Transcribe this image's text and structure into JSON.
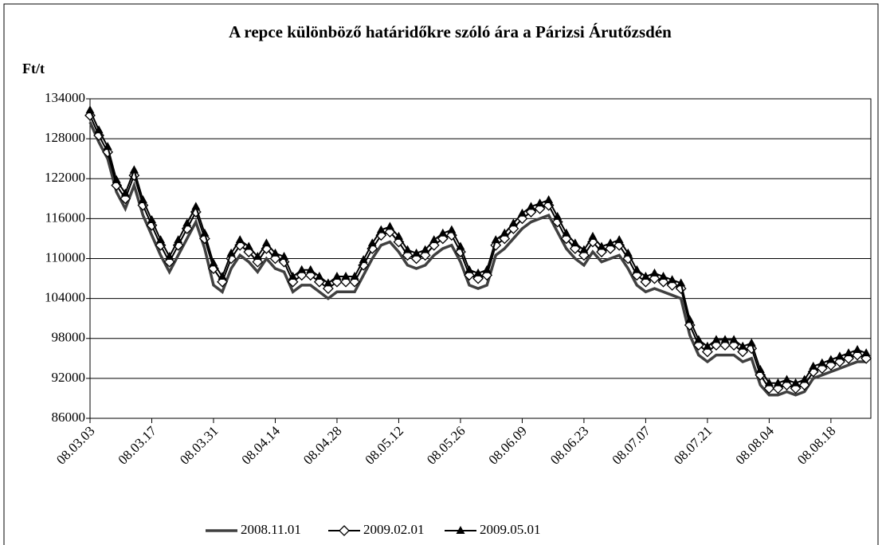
{
  "chart_data": {
    "type": "line",
    "title": "A repce különböző határidőkre szóló ára a Párizsi Árutőzsdén",
    "y_label": "Ft/t",
    "categories": [
      "08.03.03",
      null,
      null,
      null,
      null,
      null,
      null,
      "08.03.17",
      null,
      null,
      null,
      null,
      null,
      null,
      "08.03.31",
      null,
      null,
      null,
      null,
      null,
      null,
      "08.04.14",
      null,
      null,
      null,
      null,
      null,
      null,
      "08.04.28",
      null,
      null,
      null,
      null,
      null,
      null,
      "08.05.12",
      null,
      null,
      null,
      null,
      null,
      null,
      "08.05.26",
      null,
      null,
      null,
      null,
      null,
      null,
      "08.06.09",
      null,
      null,
      null,
      null,
      null,
      null,
      "08.06.23",
      null,
      null,
      null,
      null,
      null,
      null,
      "08.07.07",
      null,
      null,
      null,
      null,
      null,
      null,
      "08.07.21",
      null,
      null,
      null,
      null,
      null,
      null,
      "08.08.04",
      null,
      null,
      null,
      null,
      null,
      null,
      "08.08.18",
      null,
      null,
      null,
      null
    ],
    "series": [
      {
        "name": "2008.11.01",
        "color": "#404040",
        "marker": "none",
        "values": [
          130500,
          127500,
          125000,
          120000,
          117500,
          121000,
          116500,
          113500,
          110500,
          108000,
          110500,
          113000,
          115500,
          111500,
          106000,
          105000,
          108500,
          110500,
          109500,
          108000,
          110000,
          108500,
          108000,
          105000,
          106000,
          106000,
          105000,
          104000,
          105000,
          105000,
          105000,
          107500,
          110000,
          112000,
          112500,
          111000,
          109000,
          108500,
          109000,
          110500,
          111500,
          112000,
          109500,
          106000,
          105500,
          106000,
          110500,
          111500,
          113000,
          114500,
          115500,
          116000,
          116500,
          114000,
          111500,
          110000,
          109000,
          111000,
          109500,
          110000,
          110500,
          108500,
          106000,
          105000,
          105500,
          105000,
          104500,
          104000,
          98500,
          95500,
          94500,
          95500,
          95500,
          95500,
          94500,
          95000,
          91000,
          89500,
          89500,
          90000,
          89500,
          90000,
          92000,
          92500,
          93000,
          93500,
          94000,
          94500,
          94500
        ]
      },
      {
        "name": "2009.02.01",
        "color": "#000000",
        "marker": "diamond",
        "values": [
          131500,
          128500,
          126000,
          121000,
          119000,
          122500,
          118000,
          115000,
          112000,
          109500,
          112000,
          114500,
          117000,
          113000,
          108500,
          106500,
          110000,
          112000,
          111000,
          109500,
          111500,
          110000,
          109500,
          106500,
          107500,
          107500,
          106500,
          105500,
          106500,
          106500,
          106500,
          109000,
          111500,
          113500,
          114000,
          112500,
          110500,
          110000,
          110500,
          112000,
          113000,
          113500,
          111000,
          107500,
          107000,
          107500,
          112000,
          113000,
          114500,
          116000,
          117000,
          117500,
          118000,
          115500,
          113000,
          111500,
          110500,
          112500,
          111000,
          111500,
          112000,
          110000,
          107500,
          106500,
          107000,
          106500,
          106000,
          105500,
          100000,
          97000,
          96000,
          97000,
          97000,
          97000,
          96000,
          96500,
          92500,
          90500,
          90500,
          91000,
          90500,
          91000,
          93000,
          93500,
          94000,
          94500,
          95000,
          95500,
          95000
        ]
      },
      {
        "name": "2009.05.01",
        "color": "#000000",
        "marker": "triangle",
        "values": [
          132300,
          129300,
          126800,
          121800,
          119800,
          123300,
          118800,
          115800,
          112800,
          110300,
          112800,
          115300,
          117800,
          113800,
          109300,
          107300,
          110800,
          112800,
          111800,
          110300,
          112300,
          110800,
          110300,
          107300,
          108300,
          108300,
          107300,
          106300,
          107300,
          107300,
          107300,
          109800,
          112300,
          114300,
          114800,
          113300,
          111300,
          110800,
          111300,
          112800,
          113800,
          114300,
          111800,
          108300,
          107800,
          108300,
          112800,
          113800,
          115300,
          116800,
          117800,
          118300,
          118800,
          116300,
          113800,
          112300,
          111300,
          113300,
          111800,
          112300,
          112800,
          110800,
          108300,
          107300,
          107800,
          107300,
          106800,
          106300,
          100800,
          97800,
          96800,
          97800,
          97800,
          97800,
          96800,
          97300,
          93300,
          91300,
          91300,
          91800,
          91300,
          91800,
          93800,
          94300,
          94800,
          95300,
          95800,
          96300,
          95800
        ]
      }
    ],
    "ylim": [
      86000,
      134000
    ],
    "yticks": [
      86000,
      92000,
      98000,
      104000,
      110000,
      116000,
      122000,
      128000,
      134000
    ],
    "grid": true,
    "legend": "bottom"
  }
}
